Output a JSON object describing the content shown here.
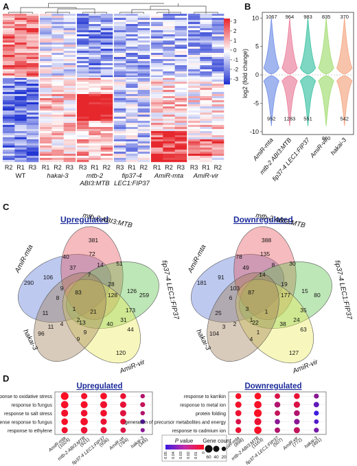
{
  "panels": {
    "a": "A",
    "b": "B",
    "c": "C",
    "d": "D"
  },
  "heatmap": {
    "columns": [
      {
        "replicates": [
          "R2",
          "R1",
          "R3"
        ],
        "label": [
          "WT"
        ],
        "italic": false
      },
      {
        "replicates": [
          "R1",
          "R2",
          "R3"
        ],
        "label": [
          "hakai-3"
        ],
        "italic": true
      },
      {
        "replicates": [
          "R3",
          "R1",
          "R2"
        ],
        "label": [
          "mtb-2",
          "ABI3:MTB"
        ],
        "italic": true
      },
      {
        "replicates": [
          "R3",
          "R1",
          "R2"
        ],
        "label": [
          "fip37-4",
          "LEC1:FIP37"
        ],
        "italic": true
      },
      {
        "replicates": [
          "R1",
          "R2",
          "R3"
        ],
        "label": [
          "AmiR-mta"
        ],
        "italic": true
      },
      {
        "replicates": [
          "R3",
          "R1",
          "R2"
        ],
        "label": [
          "AmiR-vir"
        ],
        "italic": true
      }
    ],
    "colorbar_ticks": [
      "3",
      "2",
      "1",
      "0",
      "-1",
      "-2",
      "-3"
    ]
  },
  "chart_data": [
    {
      "type": "violin",
      "panel": "B",
      "ylabel": "log2 (fold change)",
      "ylim": [
        -10.5,
        11
      ],
      "yticks": [
        "10",
        "5",
        "0",
        "-5",
        "-10"
      ],
      "categories": [
        "AmiR-mta",
        "mtb-2 ABI3:MTB",
        "fip37-4 LEC1:FIP37",
        "AmiR-vir",
        "hakai-3"
      ],
      "up_counts": [
        "1067",
        "964",
        "983",
        "835",
        "370"
      ],
      "down_counts": [
        "952",
        "1283",
        "551",
        "860",
        "542"
      ],
      "colors": [
        "#6f8ee6",
        "#ea7d9a",
        "#38c1a2",
        "#9fdc6e",
        "#f4a37e"
      ]
    },
    {
      "type": "dot",
      "panel": "D",
      "groups": [
        {
          "title": "Upregulated",
          "terms": [
            "response to oxidative stress",
            "response to fungus",
            "response to salt stress",
            "defense response to fungus",
            "response to ethylene"
          ],
          "samples": [
            {
              "name": "AmiR-mta",
              "count": "(1024)"
            },
            {
              "name": "mtb-2 ABI3:MTB",
              "count": "(921)"
            },
            {
              "name": "fip37-4 LEC1:FIP37",
              "count": "(936)"
            },
            {
              "name": "AmiR-vir",
              "count": "(784)"
            },
            {
              "name": "hakai-3",
              "count": "(345)"
            }
          ],
          "sizes": [
            [
              60,
              40,
              45,
              35,
              20
            ],
            [
              55,
              50,
              50,
              40,
              25
            ],
            [
              50,
              45,
              45,
              40,
              20
            ],
            [
              45,
              55,
              40,
              35,
              22
            ],
            [
              40,
              45,
              40,
              30,
              18
            ]
          ],
          "pvalues": [
            [
              0.001,
              0.003,
              0.002,
              0.005,
              0.02
            ],
            [
              0.002,
              0.002,
              0.004,
              0.006,
              0.015
            ],
            [
              0.003,
              0.004,
              0.003,
              0.008,
              0.02
            ],
            [
              0.002,
              0.003,
              0.005,
              0.007,
              0.04
            ],
            [
              0.004,
              0.005,
              0.006,
              0.009,
              0.03
            ]
          ]
        },
        {
          "title": "Downregulated",
          "terms": [
            "response to karrikin",
            "response to metal ion",
            "protein folding",
            "generation of precursor metabolites and energy",
            "response to cadmium ion"
          ],
          "samples": [
            {
              "name": "AmiR-mta",
              "count": "(898)"
            },
            {
              "name": "mtb-2 ABI3:MTB",
              "count": "(1163)"
            },
            {
              "name": "fip37-4 LEC1:FIP37",
              "count": "(507)"
            },
            {
              "name": "AmiR-vir",
              "count": "(772)"
            },
            {
              "name": "hakai-3",
              "count": "(491)"
            }
          ],
          "sizes": [
            [
              35,
              45,
              30,
              35,
              25
            ],
            [
              40,
              55,
              35,
              40,
              30
            ],
            [
              38,
              60,
              30,
              35,
              25
            ],
            [
              30,
              50,
              28,
              32,
              22
            ],
            [
              35,
              55,
              30,
              38,
              25
            ]
          ],
          "pvalues": [
            [
              0.002,
              0.001,
              0.01,
              0.005,
              0.03
            ],
            [
              0.003,
              0.002,
              0.02,
              0.01,
              0.04
            ],
            [
              0.004,
              0.001,
              0.015,
              0.02,
              0.05
            ],
            [
              0.01,
              0.005,
              0.03,
              0.03,
              0.045
            ],
            [
              0.005,
              0.002,
              0.02,
              0.015,
              0.035
            ]
          ]
        }
      ],
      "legend": {
        "pvalue_title": "P value",
        "pvalue_ticks": [
          "0.05",
          "0.04",
          "0.03",
          "0.02",
          "0.01",
          "0"
        ],
        "count_title": "Gene count",
        "count_ticks": [
          "60",
          "40",
          "20"
        ]
      }
    }
  ],
  "venn": {
    "sets": [
      "AmiR-mta",
      "mtb-2 ABI3:MTB",
      "fip37-4 LEC1:FIP37",
      "AmiR-vir",
      "hakai-3"
    ],
    "colors": [
      "#5b77d8",
      "#e8545d",
      "#5cc34a",
      "#ecec5a",
      "#a07e55"
    ],
    "up": {
      "title": "Upregulated",
      "values": [
        "290",
        "381",
        "259",
        "120",
        "96",
        "40",
        "72",
        "37",
        "106",
        "14",
        "51",
        "7",
        "28",
        "126",
        "83",
        "128",
        "173",
        "9",
        "11",
        "31",
        "44",
        "21",
        "13",
        "40",
        "9",
        "8",
        "11",
        "4",
        "2",
        "9",
        "1"
      ]
    },
    "down": {
      "title": "Downregulated",
      "values": [
        "181",
        "388",
        "80",
        "127",
        "104",
        "78",
        "135",
        "49",
        "91",
        "8",
        "30",
        "14",
        "19",
        "15",
        "87",
        "177",
        "35",
        "103",
        "25",
        "24",
        "63",
        "1",
        "22",
        "38",
        "4",
        "6",
        "3",
        "2",
        "1",
        "1",
        "3"
      ]
    }
  }
}
